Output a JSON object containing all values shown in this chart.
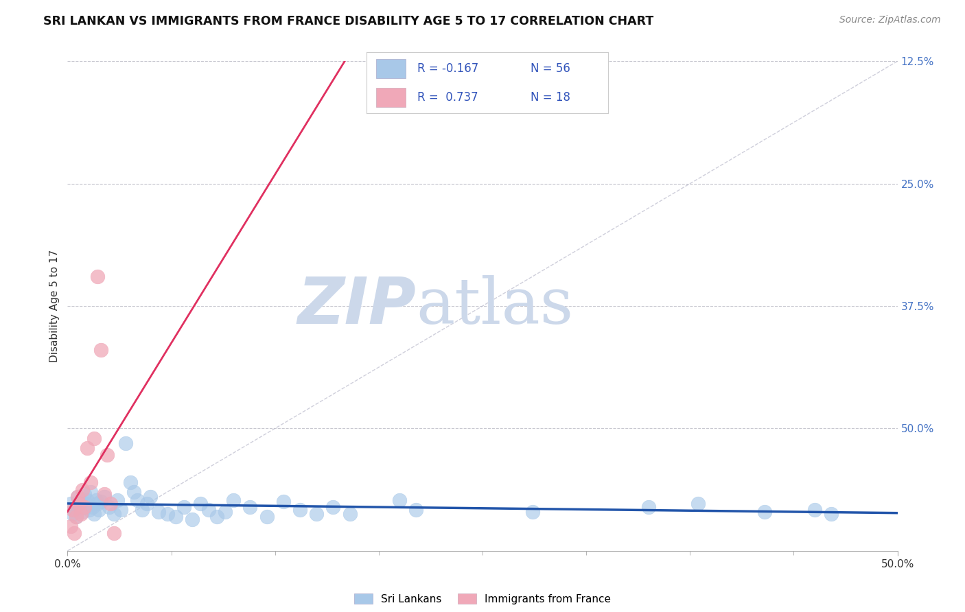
{
  "title": "SRI LANKAN VS IMMIGRANTS FROM FRANCE DISABILITY AGE 5 TO 17 CORRELATION CHART",
  "source_text": "Source: ZipAtlas.com",
  "ylabel": "Disability Age 5 to 17",
  "xlim": [
    0.0,
    0.5
  ],
  "ylim": [
    0.0,
    0.5
  ],
  "ytick_values": [
    0.125,
    0.25,
    0.375,
    0.5
  ],
  "right_ytick_labels": [
    "50.0%",
    "37.5%",
    "25.0%",
    "12.5%"
  ],
  "background_color": "#ffffff",
  "grid_color": "#c8c8d0",
  "watermark_zip": "ZIP",
  "watermark_atlas": "atlas",
  "watermark_color": "#ccd8ea",
  "legend_R1": "-0.167",
  "legend_N1": "56",
  "legend_R2": "0.737",
  "legend_N2": "18",
  "sri_lankan_color": "#a8c8e8",
  "france_color": "#f0a8b8",
  "sri_lankan_line_color": "#2255aa",
  "france_line_color": "#e03060",
  "diag_line_color": "#bbbbcc",
  "sri_lankan_points": [
    [
      0.002,
      0.048
    ],
    [
      0.003,
      0.038
    ],
    [
      0.004,
      0.042
    ],
    [
      0.005,
      0.035
    ],
    [
      0.006,
      0.055
    ],
    [
      0.007,
      0.045
    ],
    [
      0.008,
      0.05
    ],
    [
      0.009,
      0.04
    ],
    [
      0.01,
      0.058
    ],
    [
      0.011,
      0.048
    ],
    [
      0.012,
      0.052
    ],
    [
      0.013,
      0.042
    ],
    [
      0.014,
      0.06
    ],
    [
      0.015,
      0.045
    ],
    [
      0.016,
      0.038
    ],
    [
      0.017,
      0.052
    ],
    [
      0.018,
      0.048
    ],
    [
      0.019,
      0.042
    ],
    [
      0.02,
      0.05
    ],
    [
      0.022,
      0.055
    ],
    [
      0.025,
      0.045
    ],
    [
      0.028,
      0.038
    ],
    [
      0.03,
      0.052
    ],
    [
      0.032,
      0.042
    ],
    [
      0.035,
      0.11
    ],
    [
      0.038,
      0.07
    ],
    [
      0.04,
      0.06
    ],
    [
      0.042,
      0.052
    ],
    [
      0.045,
      0.042
    ],
    [
      0.048,
      0.048
    ],
    [
      0.05,
      0.055
    ],
    [
      0.055,
      0.04
    ],
    [
      0.06,
      0.038
    ],
    [
      0.065,
      0.035
    ],
    [
      0.07,
      0.045
    ],
    [
      0.075,
      0.032
    ],
    [
      0.08,
      0.048
    ],
    [
      0.085,
      0.042
    ],
    [
      0.09,
      0.035
    ],
    [
      0.095,
      0.04
    ],
    [
      0.1,
      0.052
    ],
    [
      0.11,
      0.045
    ],
    [
      0.12,
      0.035
    ],
    [
      0.13,
      0.05
    ],
    [
      0.14,
      0.042
    ],
    [
      0.15,
      0.038
    ],
    [
      0.16,
      0.045
    ],
    [
      0.17,
      0.038
    ],
    [
      0.2,
      0.052
    ],
    [
      0.21,
      0.042
    ],
    [
      0.28,
      0.04
    ],
    [
      0.35,
      0.045
    ],
    [
      0.38,
      0.048
    ],
    [
      0.42,
      0.04
    ],
    [
      0.45,
      0.042
    ],
    [
      0.46,
      0.038
    ]
  ],
  "france_points": [
    [
      0.002,
      0.025
    ],
    [
      0.003,
      0.042
    ],
    [
      0.004,
      0.018
    ],
    [
      0.005,
      0.035
    ],
    [
      0.006,
      0.055
    ],
    [
      0.007,
      0.048
    ],
    [
      0.008,
      0.038
    ],
    [
      0.009,
      0.062
    ],
    [
      0.01,
      0.045
    ],
    [
      0.012,
      0.105
    ],
    [
      0.014,
      0.07
    ],
    [
      0.016,
      0.115
    ],
    [
      0.018,
      0.28
    ],
    [
      0.02,
      0.205
    ],
    [
      0.022,
      0.058
    ],
    [
      0.024,
      0.098
    ],
    [
      0.026,
      0.048
    ],
    [
      0.028,
      0.018
    ]
  ]
}
